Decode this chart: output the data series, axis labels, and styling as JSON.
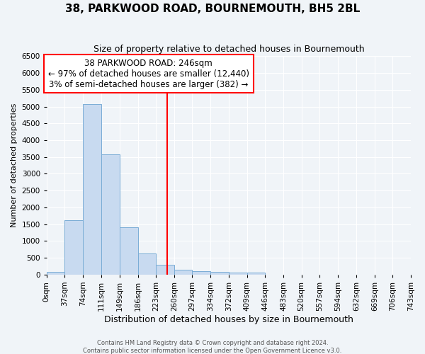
{
  "title": "38, PARKWOOD ROAD, BOURNEMOUTH, BH5 2BL",
  "subtitle": "Size of property relative to detached houses in Bournemouth",
  "xlabel": "Distribution of detached houses by size in Bournemouth",
  "ylabel": "Number of detached properties",
  "bar_values": [
    75,
    1625,
    5075,
    3575,
    1400,
    625,
    290,
    145,
    110,
    80,
    55,
    60,
    0,
    0,
    0,
    0,
    0,
    0,
    0,
    0
  ],
  "bin_edges": [
    0,
    37,
    74,
    111,
    149,
    186,
    223,
    260,
    297,
    334,
    372,
    409,
    446,
    483,
    520,
    557,
    594,
    632,
    669,
    706,
    743
  ],
  "bin_labels": [
    "0sqm",
    "37sqm",
    "74sqm",
    "111sqm",
    "149sqm",
    "186sqm",
    "223sqm",
    "260sqm",
    "297sqm",
    "334sqm",
    "372sqm",
    "409sqm",
    "446sqm",
    "483sqm",
    "520sqm",
    "557sqm",
    "594sqm",
    "632sqm",
    "669sqm",
    "706sqm",
    "743sqm"
  ],
  "bar_color": "#c8daf0",
  "bar_edge_color": "#7aadd6",
  "vline_x": 246,
  "annotation_title": "38 PARKWOOD ROAD: 246sqm",
  "annotation_line1": "← 97% of detached houses are smaller (12,440)",
  "annotation_line2": "3% of semi-detached houses are larger (382) →",
  "annotation_box_color": "white",
  "annotation_box_edge_color": "red",
  "vline_color": "red",
  "ylim": [
    0,
    6500
  ],
  "yticks": [
    0,
    500,
    1000,
    1500,
    2000,
    2500,
    3000,
    3500,
    4000,
    4500,
    5000,
    5500,
    6000,
    6500
  ],
  "footer1": "Contains HM Land Registry data © Crown copyright and database right 2024.",
  "footer2": "Contains public sector information licensed under the Open Government Licence v3.0.",
  "bg_color": "#f0f4f8",
  "plot_bg_color": "#f0f4f8",
  "grid_color": "#ffffff",
  "title_fontsize": 11,
  "subtitle_fontsize": 9,
  "xlabel_fontsize": 9,
  "ylabel_fontsize": 8,
  "tick_fontsize": 7.5,
  "annot_fontsize": 8.5,
  "footer_fontsize": 6
}
